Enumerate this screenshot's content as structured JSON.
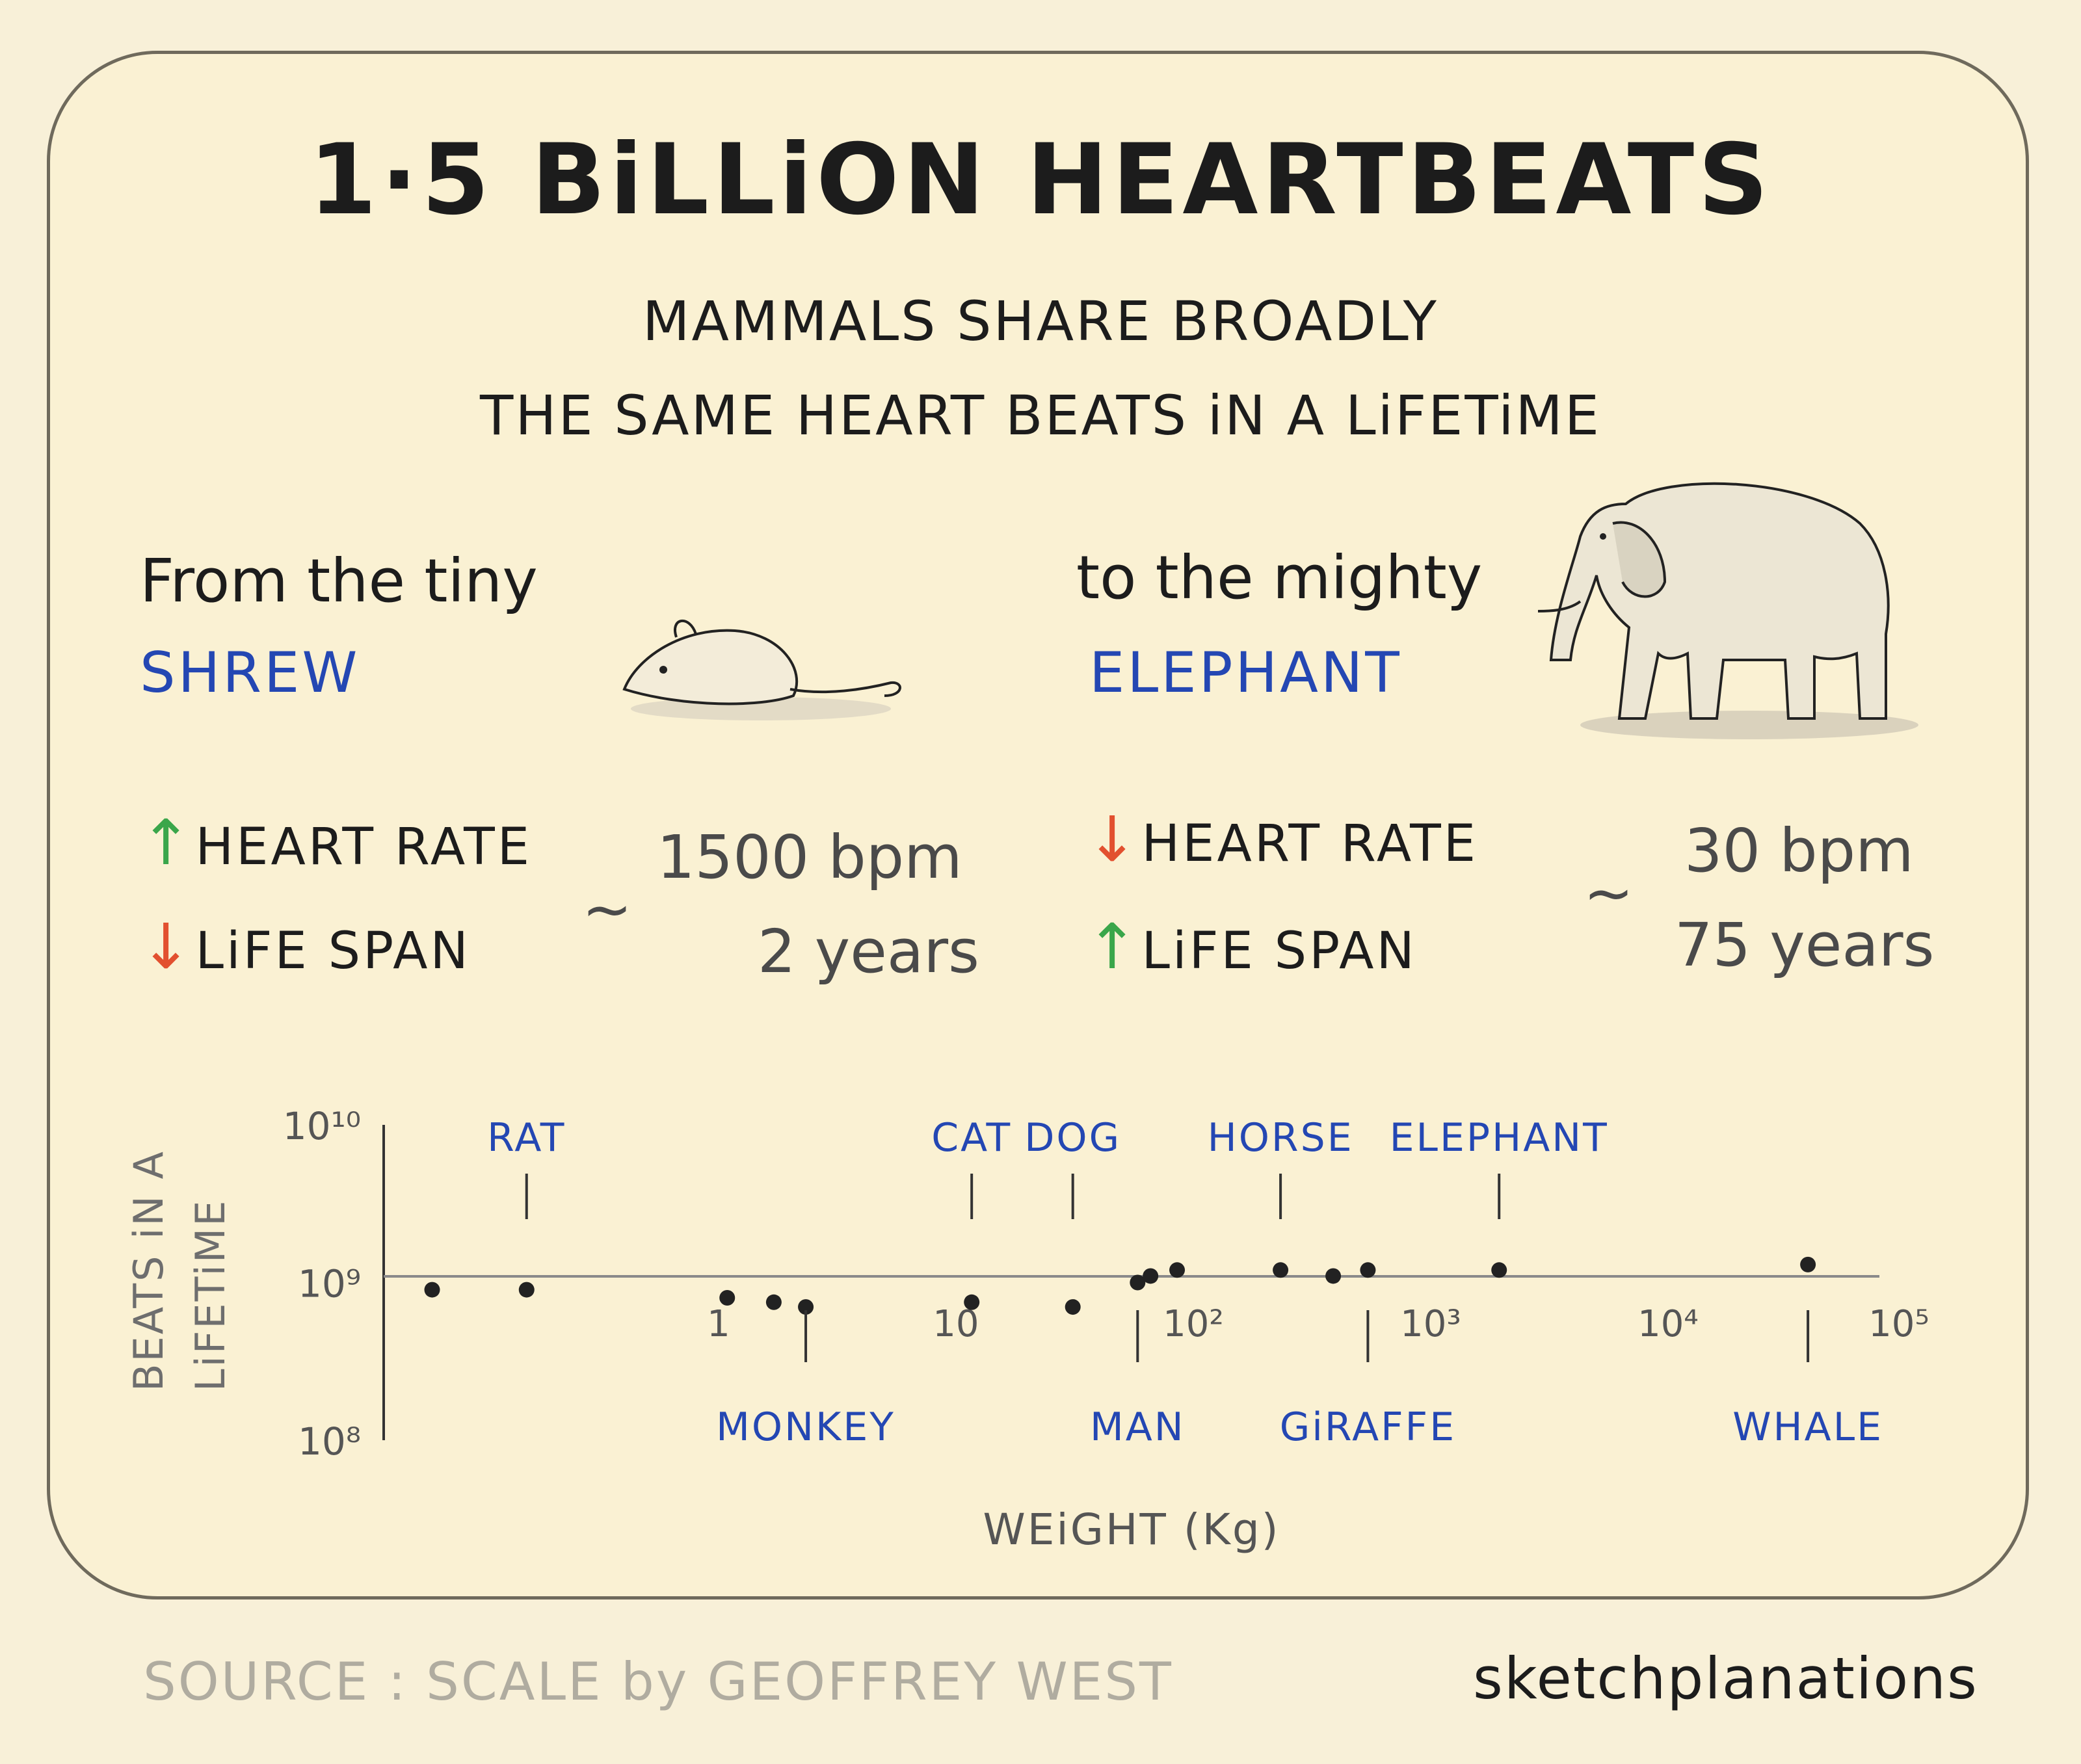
{
  "title": "1·5 BiLLiON HEARTBEATS",
  "subtitle_line1": "MAMMALS SHARE BROADLY",
  "subtitle_line2": "THE SAME HEART BEATS iN A LiFETiME",
  "left": {
    "intro": "From the tiny",
    "animal": "SHREW",
    "heart_rate_label": "HEART RATE",
    "lifespan_label": "LiFE SPAN",
    "tilde": "~",
    "heart_rate_value": "1500 bpm",
    "lifespan_value": "2 years",
    "heart_rate_arrow": "↑",
    "lifespan_arrow": "↓"
  },
  "right": {
    "intro": "to the mighty",
    "animal": "ELEPHANT",
    "heart_rate_label": "HEART RATE",
    "lifespan_label": "LiFE SPAN",
    "tilde": "~",
    "heart_rate_value": "30 bpm",
    "lifespan_value": "75 years",
    "heart_rate_arrow": "↓",
    "lifespan_arrow": "↑"
  },
  "chart_data": {
    "type": "scatter",
    "xlabel": "WEiGHT (Kg)",
    "ylabel": "BEATS iN A LiFETiME",
    "x_scale": "log",
    "y_scale": "log",
    "x_ticks": [
      "1",
      "10",
      "10²",
      "10³",
      "10⁴",
      "10⁵"
    ],
    "y_ticks": [
      "10¹⁰",
      "10⁹",
      "10⁸"
    ],
    "xlim": [
      0.05,
      100000
    ],
    "ylim": [
      100000000,
      10000000000
    ],
    "points": [
      {
        "x": 0.08,
        "y": 900000000
      },
      {
        "x": 0.2,
        "y": 900000000
      },
      {
        "x": 1.4,
        "y": 800000000
      },
      {
        "x": 2.2,
        "y": 750000000
      },
      {
        "x": 3,
        "y": 700000000
      },
      {
        "x": 15,
        "y": 750000000
      },
      {
        "x": 40,
        "y": 700000000
      },
      {
        "x": 75,
        "y": 1000000000
      },
      {
        "x": 85,
        "y": 1100000000
      },
      {
        "x": 110,
        "y": 1200000000
      },
      {
        "x": 300,
        "y": 1200000000
      },
      {
        "x": 500,
        "y": 1100000000
      },
      {
        "x": 700,
        "y": 1200000000
      },
      {
        "x": 2500,
        "y": 1200000000
      },
      {
        "x": 50000,
        "y": 1300000000
      }
    ],
    "labels_above": [
      "RAT",
      "CAT",
      "DOG",
      "HORSE",
      "ELEPHANT"
    ],
    "labels_below": [
      "MONKEY",
      "MAN",
      "GiRAFFE",
      "WHALE"
    ]
  },
  "footer": {
    "source": "SOURCE : SCALE by GEOFFREY WEST",
    "brand": "sketchplanations"
  },
  "colors": {
    "accent_blue": "#2447b3",
    "up_green": "#3aa64a",
    "down_red": "#e2502f"
  }
}
